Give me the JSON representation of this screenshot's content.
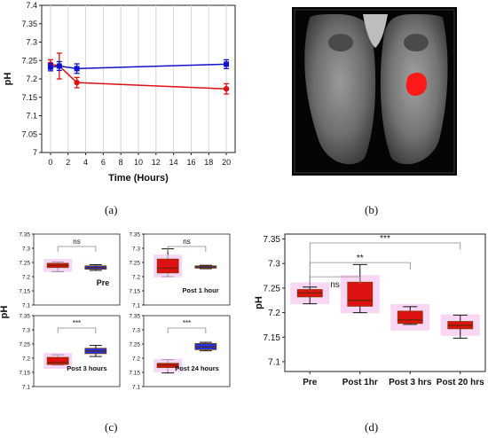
{
  "captions": {
    "a": "(a)",
    "b": "(b)",
    "c": "(c)",
    "d": "(d)"
  },
  "chart_data": [
    {
      "id": "a",
      "type": "line",
      "xlabel": "Time (Hours)",
      "ylabel": "pH",
      "xlim": [
        -1,
        21
      ],
      "ylim": [
        7.0,
        7.4
      ],
      "xticks": [
        "0",
        "2",
        "4",
        "6",
        "8",
        "10",
        "12",
        "14",
        "16",
        "18",
        "20"
      ],
      "yticks": [
        "7",
        "7.05",
        "7.1",
        "7.15",
        "7.2",
        "7.25",
        "7.3",
        "7.35",
        "7.4"
      ],
      "grid": "vertical",
      "series": [
        {
          "color": "#dd1111",
          "x": [
            0,
            1,
            3,
            20
          ],
          "y": [
            7.24,
            7.235,
            7.19,
            7.173
          ],
          "err": [
            0.012,
            0.035,
            0.014,
            0.014
          ]
        },
        {
          "color": "#1111cc",
          "x": [
            0,
            1,
            3,
            20
          ],
          "y": [
            7.232,
            7.235,
            7.228,
            7.24
          ],
          "err": [
            0.01,
            0.012,
            0.013,
            0.012
          ]
        }
      ]
    },
    {
      "id": "c",
      "type": "box",
      "ylabel": "pH",
      "yticks": [
        "7.1",
        "7.15",
        "7.2",
        "7.25",
        "7.3",
        "7.35"
      ],
      "ylim": [
        7.1,
        7.35
      ],
      "subplots": [
        {
          "label": "Pre",
          "sig": "ns",
          "boxes": [
            {
              "color": "#dd1111",
              "min": 7.218,
              "q1": 7.232,
              "median": 7.24,
              "q3": 7.247,
              "max": 7.252
            },
            {
              "color": "#2233dd",
              "min": 7.222,
              "q1": 7.226,
              "median": 7.232,
              "q3": 7.238,
              "max": 7.242
            }
          ]
        },
        {
          "label": "Post 1 hour",
          "sig": "ns",
          "boxes": [
            {
              "color": "#dd1111",
              "min": 7.2,
              "q1": 7.213,
              "median": 7.23,
              "q3": 7.262,
              "max": 7.298
            },
            {
              "color": "#2233dd",
              "min": 7.228,
              "q1": 7.23,
              "median": 7.234,
              "q3": 7.238,
              "max": 7.24
            }
          ]
        },
        {
          "label": "Post 3 hours",
          "sig": "***",
          "boxes": [
            {
              "color": "#dd1111",
              "min": 7.176,
              "q1": 7.178,
              "median": 7.185,
              "q3": 7.203,
              "max": 7.212
            },
            {
              "color": "#2233dd",
              "min": 7.206,
              "q1": 7.216,
              "median": 7.225,
              "q3": 7.235,
              "max": 7.245
            }
          ]
        },
        {
          "label": "Post 24 hours",
          "sig": "***",
          "boxes": [
            {
              "color": "#dd1111",
              "min": 7.148,
              "q1": 7.167,
              "median": 7.176,
              "q3": 7.182,
              "max": 7.195
            },
            {
              "color": "#2233dd",
              "min": 7.226,
              "q1": 7.23,
              "median": 7.24,
              "q3": 7.252,
              "max": 7.256
            }
          ]
        }
      ]
    },
    {
      "id": "d",
      "type": "box",
      "ylabel": "pH",
      "ylim": [
        7.08,
        7.36
      ],
      "yticks": [
        "7.1",
        "7.15",
        "7.2",
        "7.25",
        "7.3",
        "7.35"
      ],
      "categories": [
        "Pre",
        "Post 1hr",
        "Post 3 hrs",
        "Post 20 hrs"
      ],
      "boxes": [
        {
          "min": 7.218,
          "q1": 7.232,
          "median": 7.24,
          "q3": 7.247,
          "max": 7.252
        },
        {
          "min": 7.2,
          "q1": 7.213,
          "median": 7.225,
          "q3": 7.262,
          "max": 7.298
        },
        {
          "min": 7.176,
          "q1": 7.178,
          "median": 7.185,
          "q3": 7.203,
          "max": 7.212
        },
        {
          "min": 7.148,
          "q1": 7.167,
          "median": 7.174,
          "q3": 7.182,
          "max": 7.195
        }
      ],
      "brackets": [
        {
          "from": "Pre",
          "to": "Post 1hr",
          "label": "ns"
        },
        {
          "from": "Pre",
          "to": "Post 3 hrs",
          "label": "**"
        },
        {
          "from": "Pre",
          "to": "Post 20 hrs",
          "label": "***"
        }
      ],
      "box_color": "#dd1111",
      "whisker_color": "#111111"
    }
  ]
}
